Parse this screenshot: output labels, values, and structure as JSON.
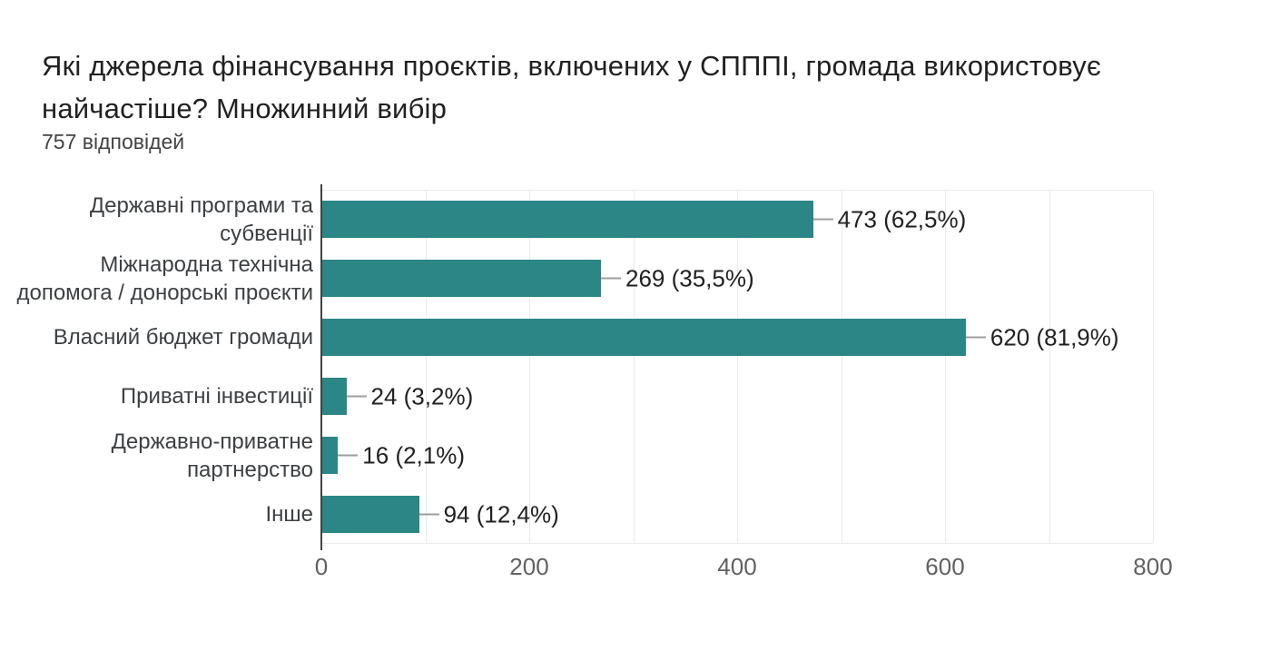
{
  "colors": {
    "bar": "#2C8686",
    "title_text": "#212121",
    "subtitle_text": "#424242",
    "category_text": "#3C4043",
    "value_text": "#212121",
    "tick_text": "#616161",
    "gridline": "#EBEBEB",
    "axis_line": "#424242",
    "connector": "#9E9E9E",
    "background": "#FFFFFF"
  },
  "chart_data": {
    "type": "bar",
    "orientation": "horizontal",
    "title": "Які джерела фінансування проєктів, включених у СПППІ, громада використовує\nнайчастіше? Множинний вибір",
    "subtitle": "757 відповідей",
    "categories": [
      "Державні програми та субвенції",
      "Міжнародна технічна\nдопомога / донорські проєкти",
      "Власний бюджет громади",
      "Приватні інвестиції",
      "Державно-приватне\nпартнерство",
      "Інше"
    ],
    "values": [
      473,
      269,
      620,
      24,
      16,
      94
    ],
    "value_labels": [
      "473 (62,5%)",
      "269 (35,5%)",
      "620 (81,9%)",
      "24 (3,2%)",
      "16 (2,1%)",
      "94 (12,4%)"
    ],
    "xlim": [
      0,
      800
    ],
    "x_ticks": [
      0,
      200,
      400,
      600,
      800
    ],
    "gridline_step": 100,
    "grid": true,
    "legend": false,
    "xlabel": "",
    "ylabel": ""
  }
}
